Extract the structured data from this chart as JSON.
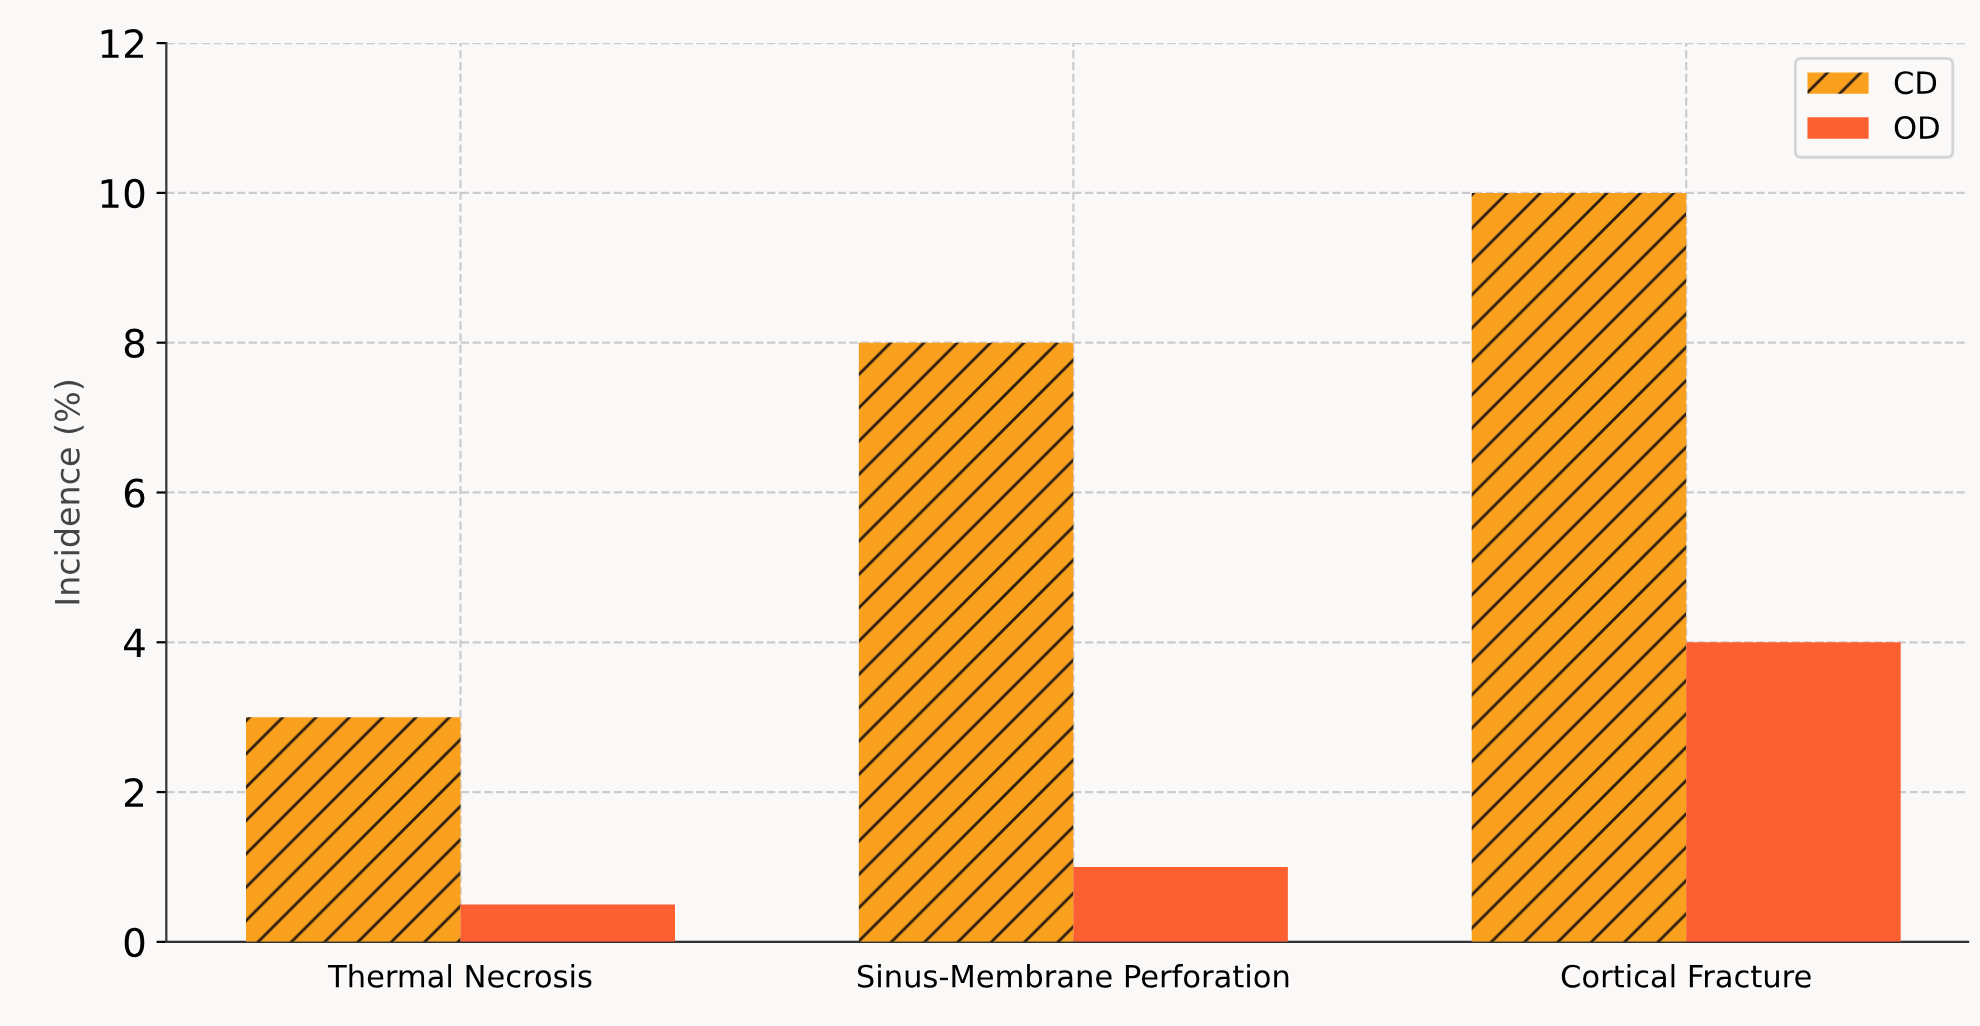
{
  "chart_data": {
    "type": "bar",
    "ylabel": "Incidence (%)",
    "categories": [
      "Thermal Necrosis",
      "Sinus-Membrane Perforation",
      "Cortical Fracture"
    ],
    "series": [
      {
        "name": "CD",
        "color": "#f9a11f",
        "values": [
          3,
          8,
          10
        ]
      },
      {
        "name": "OD",
        "color": "#fd6030",
        "values": [
          0.5,
          1,
          4
        ]
      }
    ],
    "ylim": [
      0,
      12
    ],
    "yticks": [
      0,
      2,
      4,
      6,
      8,
      10,
      12
    ],
    "grid": true,
    "legend": "top right"
  }
}
